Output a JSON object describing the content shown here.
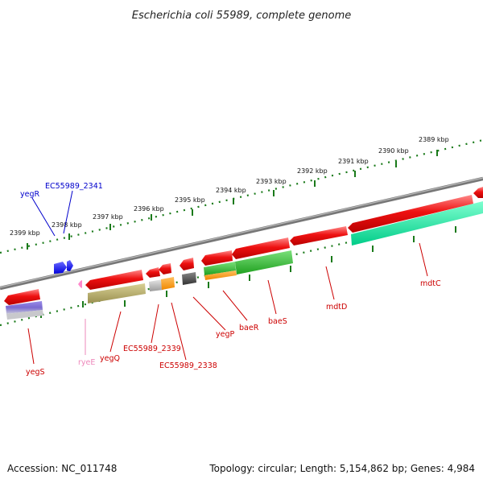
{
  "header": {
    "title": "Escherichia coli 55989, complete genome"
  },
  "footer": {
    "accession": "Accession: NC_011748",
    "topology": "Topology: circular; Length: 5,154,862 bp; Genes: 4,984"
  },
  "scale": {
    "labels": [
      "2399 kbp",
      "2398 kbp",
      "2397 kbp",
      "2396 kbp",
      "2395 kbp",
      "2394 kbp",
      "2393 kbp",
      "2392 kbp",
      "2391 kbp",
      "2390 kbp",
      "2389 kbp"
    ]
  },
  "genes": [
    {
      "name": "yegR",
      "color": "#0000cc"
    },
    {
      "name": "EC55989_2341",
      "color": "#0000cc"
    },
    {
      "name": "yegS",
      "color": "#cc0000"
    },
    {
      "name": "ryeE",
      "color": "#ee88bb"
    },
    {
      "name": "yegQ",
      "color": "#cc0000"
    },
    {
      "name": "EC55989_2339",
      "color": "#cc0000"
    },
    {
      "name": "EC55989_2338",
      "color": "#cc0000"
    },
    {
      "name": "yegP",
      "color": "#cc0000"
    },
    {
      "name": "baeR",
      "color": "#cc0000"
    },
    {
      "name": "baeS",
      "color": "#cc0000"
    },
    {
      "name": "mdtD",
      "color": "#cc0000"
    },
    {
      "name": "mdtC",
      "color": "#cc0000"
    }
  ],
  "colors": {
    "backbone": "#888888",
    "cds": "#ee1111",
    "ncrna": "#0000ff",
    "misc_rna": "#ff88cc",
    "tick": "#1a7a1a"
  }
}
